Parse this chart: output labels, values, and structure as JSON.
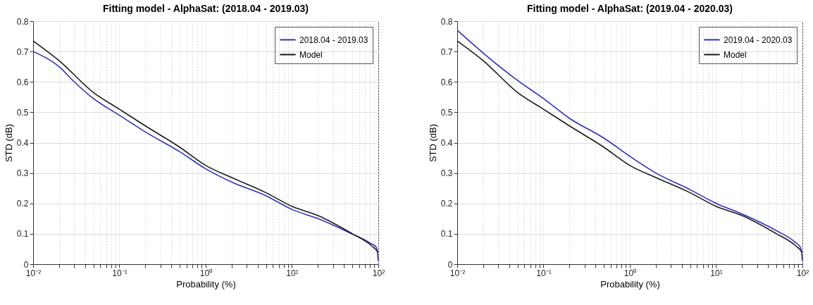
{
  "chart_data": [
    {
      "type": "line",
      "title": "Fitting model - AlphaSat: (2018.04 - 2019.03)",
      "xlabel": "Probability (%)",
      "ylabel": "STD (dB)",
      "log": "x",
      "grid": true,
      "legend": "top right",
      "line_style": "solid",
      "xlim": [
        0.01,
        100
      ],
      "xticks": [
        {
          "value": 0.01,
          "label": "10⁻²"
        },
        {
          "value": 0.02,
          "label": null
        },
        {
          "value": 0.03,
          "label": null
        },
        {
          "value": 0.04,
          "label": null
        },
        {
          "value": 0.05,
          "label": null
        },
        {
          "value": 0.06,
          "label": null
        },
        {
          "value": 0.07,
          "label": null
        },
        {
          "value": 0.08,
          "label": null
        },
        {
          "value": 0.09,
          "label": null
        },
        {
          "value": 0.1,
          "label": "10⁻¹"
        },
        {
          "value": 0.2,
          "label": null
        },
        {
          "value": 0.3,
          "label": null
        },
        {
          "value": 0.4,
          "label": null
        },
        {
          "value": 0.5,
          "label": null
        },
        {
          "value": 0.6,
          "label": null
        },
        {
          "value": 0.7,
          "label": null
        },
        {
          "value": 0.8,
          "label": null
        },
        {
          "value": 0.9,
          "label": null
        },
        {
          "value": 1,
          "label": "10⁰"
        },
        {
          "value": 2,
          "label": null
        },
        {
          "value": 3,
          "label": null
        },
        {
          "value": 4,
          "label": null
        },
        {
          "value": 5,
          "label": null
        },
        {
          "value": 6,
          "label": null
        },
        {
          "value": 7,
          "label": null
        },
        {
          "value": 8,
          "label": null
        },
        {
          "value": 9,
          "label": null
        },
        {
          "value": 10,
          "label": "10¹"
        },
        {
          "value": 20,
          "label": null
        },
        {
          "value": 30,
          "label": null
        },
        {
          "value": 40,
          "label": null
        },
        {
          "value": 50,
          "label": null
        },
        {
          "value": 60,
          "label": null
        },
        {
          "value": 70,
          "label": null
        },
        {
          "value": 80,
          "label": null
        },
        {
          "value": 90,
          "label": null
        },
        {
          "value": 100,
          "label": "10²"
        }
      ],
      "ylim": [
        0,
        0.8
      ],
      "yticks": [
        0,
        0.1,
        0.2,
        0.3,
        0.4,
        0.5,
        0.6,
        0.7,
        0.8
      ],
      "series": [
        {
          "name": "2018.04 - 2019.03",
          "color": "#3030b8",
          "x": [
            0.01,
            0.02,
            0.03,
            0.05,
            0.1,
            0.2,
            0.5,
            1,
            2,
            5,
            10,
            20,
            45,
            80,
            95,
            100
          ],
          "values": [
            0.7,
            0.65,
            0.6,
            0.545,
            0.49,
            0.435,
            0.37,
            0.314,
            0.27,
            0.225,
            0.18,
            0.15,
            0.105,
            0.07,
            0.055,
            0.01
          ]
        },
        {
          "name": "Model",
          "color": "#1a1a1a",
          "x": [
            0.01,
            0.02,
            0.05,
            0.1,
            0.2,
            0.5,
            1,
            2,
            5,
            10,
            20,
            50,
            80,
            100
          ],
          "values": [
            0.735,
            0.67,
            0.565,
            0.51,
            0.455,
            0.385,
            0.325,
            0.285,
            0.235,
            0.19,
            0.16,
            0.1,
            0.065,
            0.04
          ]
        }
      ]
    },
    {
      "type": "line",
      "title": "Fitting model - AlphaSat: (2019.04 - 2020.03)",
      "xlabel": "Probability (%)",
      "ylabel": "STD (dB)",
      "log": "x",
      "grid": true,
      "legend": "top right",
      "line_style": "solid",
      "xlim": [
        0.01,
        100
      ],
      "xticks": [
        {
          "value": 0.01,
          "label": "10⁻²"
        },
        {
          "value": 0.02,
          "label": null
        },
        {
          "value": 0.03,
          "label": null
        },
        {
          "value": 0.04,
          "label": null
        },
        {
          "value": 0.05,
          "label": null
        },
        {
          "value": 0.06,
          "label": null
        },
        {
          "value": 0.07,
          "label": null
        },
        {
          "value": 0.08,
          "label": null
        },
        {
          "value": 0.09,
          "label": null
        },
        {
          "value": 0.1,
          "label": "10⁻¹"
        },
        {
          "value": 0.2,
          "label": null
        },
        {
          "value": 0.3,
          "label": null
        },
        {
          "value": 0.4,
          "label": null
        },
        {
          "value": 0.5,
          "label": null
        },
        {
          "value": 0.6,
          "label": null
        },
        {
          "value": 0.7,
          "label": null
        },
        {
          "value": 0.8,
          "label": null
        },
        {
          "value": 0.9,
          "label": null
        },
        {
          "value": 1,
          "label": "10⁰"
        },
        {
          "value": 2,
          "label": null
        },
        {
          "value": 3,
          "label": null
        },
        {
          "value": 4,
          "label": null
        },
        {
          "value": 5,
          "label": null
        },
        {
          "value": 6,
          "label": null
        },
        {
          "value": 7,
          "label": null
        },
        {
          "value": 8,
          "label": null
        },
        {
          "value": 9,
          "label": null
        },
        {
          "value": 10,
          "label": "10¹"
        },
        {
          "value": 20,
          "label": null
        },
        {
          "value": 30,
          "label": null
        },
        {
          "value": 40,
          "label": null
        },
        {
          "value": 50,
          "label": null
        },
        {
          "value": 60,
          "label": null
        },
        {
          "value": 70,
          "label": null
        },
        {
          "value": 80,
          "label": null
        },
        {
          "value": 90,
          "label": null
        },
        {
          "value": 100,
          "label": "10²"
        }
      ],
      "ylim": [
        0,
        0.8
      ],
      "yticks": [
        0,
        0.1,
        0.2,
        0.3,
        0.4,
        0.5,
        0.6,
        0.7,
        0.8
      ],
      "series": [
        {
          "name": "2019.04 - 2020.03",
          "color": "#3030b8",
          "x": [
            0.01,
            0.02,
            0.05,
            0.1,
            0.2,
            0.5,
            1,
            2,
            5,
            10,
            20,
            50,
            80,
            95,
            100
          ],
          "values": [
            0.77,
            0.695,
            0.605,
            0.545,
            0.48,
            0.415,
            0.355,
            0.3,
            0.245,
            0.2,
            0.165,
            0.11,
            0.075,
            0.055,
            0.01
          ]
        },
        {
          "name": "Model",
          "color": "#1a1a1a",
          "x": [
            0.01,
            0.02,
            0.05,
            0.1,
            0.2,
            0.5,
            1,
            2,
            5,
            10,
            20,
            50,
            80,
            100
          ],
          "values": [
            0.735,
            0.67,
            0.565,
            0.51,
            0.455,
            0.385,
            0.325,
            0.285,
            0.235,
            0.19,
            0.16,
            0.1,
            0.065,
            0.04
          ]
        }
      ]
    }
  ]
}
